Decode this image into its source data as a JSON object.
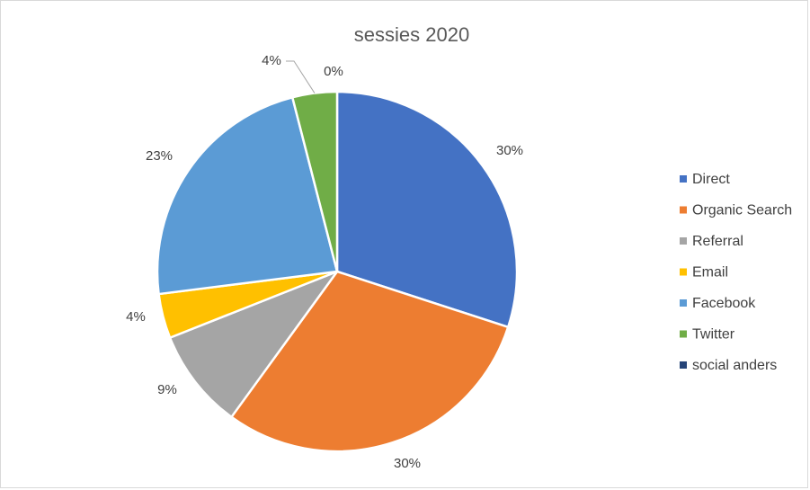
{
  "chart_data": {
    "type": "pie",
    "title": "sessies 2020",
    "legend_position": "right",
    "slices": [
      {
        "name": "Direct",
        "value": 30,
        "label": "30%",
        "color": "#4472C4"
      },
      {
        "name": "Organic Search",
        "value": 30,
        "label": "30%",
        "color": "#ED7D31"
      },
      {
        "name": "Referral",
        "value": 9,
        "label": "9%",
        "color": "#A5A5A5"
      },
      {
        "name": "Email",
        "value": 4,
        "label": "4%",
        "color": "#FFC000"
      },
      {
        "name": "Facebook",
        "value": 23,
        "label": "23%",
        "color": "#5B9BD5"
      },
      {
        "name": "Twitter",
        "value": 4,
        "label": "4%",
        "color": "#70AD47"
      },
      {
        "name": "social anders",
        "value": 0,
        "label": "0%",
        "color": "#264478"
      }
    ]
  }
}
